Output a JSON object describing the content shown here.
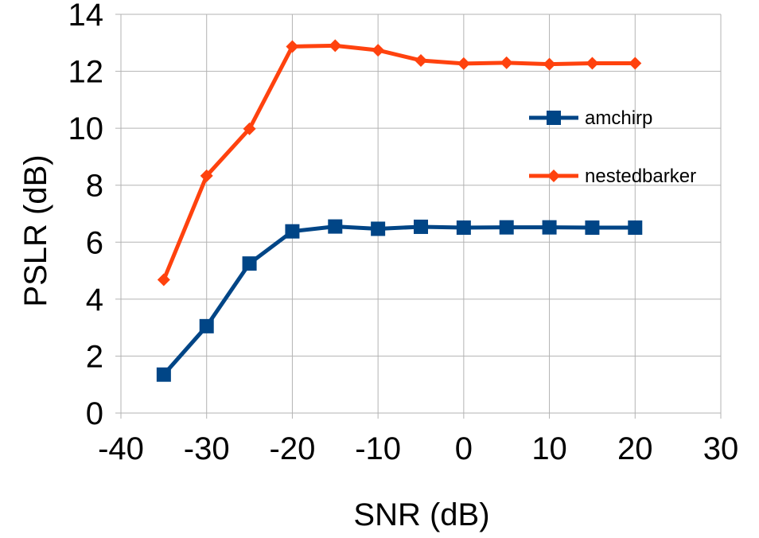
{
  "chart_data": {
    "type": "line",
    "title": "",
    "xlabel": "SNR (dB)",
    "ylabel": "PSLR (dB)",
    "xlim": [
      -40,
      30
    ],
    "ylim": [
      0,
      14
    ],
    "x_ticks": [
      -40,
      -30,
      -20,
      -10,
      0,
      10,
      20,
      30
    ],
    "y_ticks": [
      0,
      2,
      4,
      6,
      8,
      10,
      12,
      14
    ],
    "grid": true,
    "legend_position": "right",
    "series": [
      {
        "name": "amchirp",
        "color": "#004586",
        "marker": "square",
        "x": [
          -35,
          -30,
          -25,
          -20,
          -15,
          -10,
          -5,
          0,
          5,
          10,
          15,
          20
        ],
        "y": [
          1.35,
          3.05,
          5.25,
          6.38,
          6.55,
          6.47,
          6.54,
          6.51,
          6.52,
          6.52,
          6.51,
          6.51
        ]
      },
      {
        "name": "nestedbarker",
        "color": "#ff420e",
        "marker": "diamond",
        "x": [
          -35,
          -30,
          -25,
          -20,
          -15,
          -10,
          -5,
          0,
          5,
          10,
          15,
          20
        ],
        "y": [
          4.68,
          8.33,
          9.98,
          12.87,
          12.9,
          12.74,
          12.38,
          12.27,
          12.3,
          12.25,
          12.28,
          12.28
        ]
      }
    ]
  }
}
